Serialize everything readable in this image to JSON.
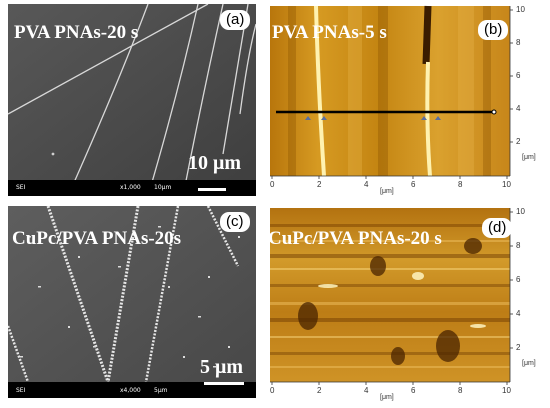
{
  "panel_a": {
    "title": "PVA PNAs-20 s",
    "letter": "(a)",
    "scale_bar_label": "10 μm",
    "footer_mode": "SEI",
    "footer_mag": "x1,000",
    "footer_scale": "10μm"
  },
  "panel_b": {
    "title": "PVA PNAs-5 s",
    "letter": "(b)",
    "x_ticks": [
      "0",
      "2",
      "4",
      "6",
      "8",
      "10"
    ],
    "y_ticks": [
      "10",
      "8",
      "6",
      "4",
      "2"
    ],
    "x_unit": "[μm]",
    "y_unit": "[μm]"
  },
  "panel_c": {
    "title": "CuPc/PVA PNAs-20s",
    "letter": "(c)",
    "scale_bar_label": "5 μm",
    "footer_mode": "SEI",
    "footer_mag": "x4,000",
    "footer_scale": "5μm"
  },
  "panel_d": {
    "title": "CuPc/PVA PNAs-20 s",
    "letter": "(d)",
    "x_ticks": [
      "0",
      "2",
      "4",
      "6",
      "8",
      "10"
    ],
    "y_ticks": [
      "10",
      "8",
      "6",
      "4",
      "2"
    ],
    "x_unit": "[μm]",
    "y_unit": "[μm]"
  },
  "colors": {
    "sem_background": "#4a4a4a",
    "afm_gold": "#c98a10",
    "afm_bright": "#ffe680",
    "afm_dark": "#6b3a00"
  }
}
